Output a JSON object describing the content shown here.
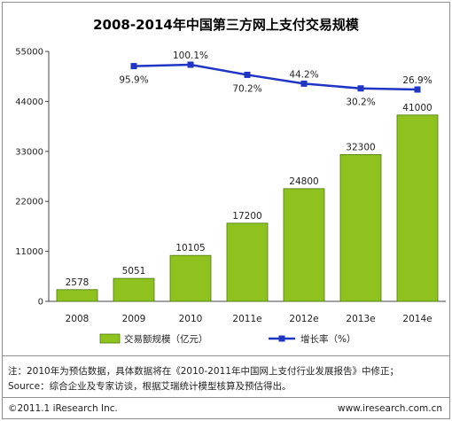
{
  "title": "2008-2014年中国第三方网上支付交易规模",
  "colors": {
    "bar": "#8dc21f",
    "bar_edge": "#4d7a0c",
    "line": "#1f35c4",
    "axis": "#444444"
  },
  "chart_data": {
    "type": "bar+line",
    "title": "2008-2014年中国第三方网上支付交易规模",
    "categories": [
      "2008",
      "2009",
      "2010",
      "2011e",
      "2012e",
      "2013e",
      "2014e"
    ],
    "series": [
      {
        "name": "交易额规模（亿元）",
        "type": "bar",
        "values": [
          2578,
          5051,
          10105,
          17200,
          24800,
          32300,
          41000
        ]
      },
      {
        "name": "增长率（%）",
        "type": "line",
        "values": [
          null,
          95.9,
          100.1,
          70.2,
          44.2,
          30.2,
          26.9
        ],
        "labels": [
          "",
          "95.9%",
          "100.1%",
          "70.2%",
          "44.2%",
          "30.2%",
          "26.9%"
        ]
      }
    ],
    "yticks": [
      0,
      11000,
      22000,
      33000,
      44000,
      55000
    ],
    "ylim": [
      0,
      55000
    ],
    "grid": false,
    "legend_position": "bottom"
  },
  "notes": {
    "line1": "注：2010年为预估数据，具体数据将在《2010-2011年中国网上支付行业发展报告》中修正；",
    "line2": "Source：综合企业及专家访谈，根据艾瑞统计模型核算及预估得出。"
  },
  "footer": {
    "copyright": "©2011.1 iResearch Inc.",
    "website": "www.iresearch.com.cn"
  }
}
